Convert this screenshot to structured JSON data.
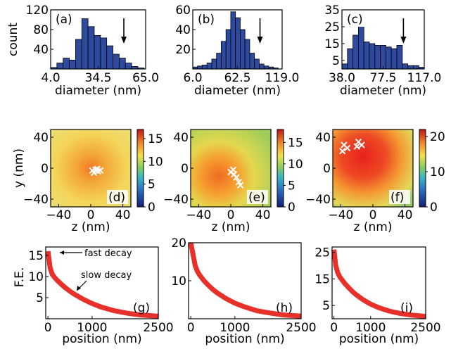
{
  "chart_data": [
    {
      "type": "bar",
      "panel": "(a)",
      "ylabel": "count",
      "xlabel": "diameter (nm)",
      "xlim": [
        4.0,
        65.0
      ],
      "ylim": [
        0,
        120
      ],
      "xticks": [
        "4.0",
        "34.5",
        "65.0"
      ],
      "yticks": [
        "40",
        "80",
        "120"
      ],
      "bin_width": 4.0,
      "bins": [
        4.0,
        8.0,
        12.0,
        16.0,
        20.0,
        24.0,
        28.0,
        32.0,
        36.0,
        40.0,
        44.0,
        48.0,
        52.0,
        56.0,
        60.0
      ],
      "values": [
        3,
        12,
        22,
        18,
        60,
        102,
        86,
        68,
        63,
        47,
        30,
        22,
        12,
        5,
        2
      ],
      "arrow_x": 51,
      "bar_color": "#2e4a9e"
    },
    {
      "type": "bar",
      "panel": "(b)",
      "ylabel": "",
      "xlabel": "diameter (nm)",
      "xlim": [
        6.0,
        119.0
      ],
      "ylim": [
        0,
        60
      ],
      "xticks": [
        "6.0",
        "62.5",
        "119.0"
      ],
      "yticks": [
        "20",
        "40",
        "60"
      ],
      "bin_width": 6.0,
      "bins": [
        6.0,
        12.0,
        18.0,
        24.0,
        30.0,
        36.0,
        42.0,
        48.0,
        54.0,
        60.0,
        66.0,
        72.0,
        78.0,
        84.0,
        90.0,
        96.0,
        102.0,
        108.0
      ],
      "values": [
        2,
        3,
        4,
        6,
        10,
        16,
        28,
        40,
        58,
        52,
        40,
        30,
        16,
        10,
        5,
        3,
        2,
        1
      ],
      "arrow_x": 91,
      "bar_color": "#2e4a9e"
    },
    {
      "type": "bar",
      "panel": "(c)",
      "ylabel": "",
      "xlabel": "diameter (nm)",
      "xlim": [
        38.0,
        117.0
      ],
      "ylim": [
        0,
        35
      ],
      "xticks": [
        "38.0",
        "77.5",
        "117.0"
      ],
      "yticks": [
        "5",
        "15",
        "25",
        "35"
      ],
      "bin_width": 5.27,
      "bins": [
        38.0,
        43.27,
        48.53,
        53.8,
        59.07,
        64.33,
        69.6,
        74.87,
        80.13,
        85.4,
        90.67,
        95.93,
        101.2,
        106.47,
        111.73
      ],
      "values": [
        3,
        12,
        20,
        31,
        16,
        15,
        14,
        14,
        13,
        12,
        14,
        3,
        2,
        2,
        1
      ],
      "arrow_x": 97,
      "bar_color": "#2e4a9e"
    },
    {
      "type": "heatmap",
      "panel": "(d)",
      "xlabel": "z (nm)",
      "ylabel": "y (nm)",
      "xlim": [
        -50,
        50
      ],
      "ylim": [
        -50,
        50
      ],
      "xticks": [
        "−40",
        "0",
        "40"
      ],
      "yticks": [
        "40",
        "0",
        "−40"
      ],
      "colorbar_ticks": [
        "15",
        "10",
        "5",
        "0"
      ],
      "colorbar_range": [
        0,
        17
      ],
      "markers": [
        [
          2,
          -3
        ],
        [
          6,
          -2
        ],
        [
          9,
          -4
        ],
        [
          12,
          -3
        ],
        [
          4,
          -6
        ],
        [
          8,
          -1
        ]
      ]
    },
    {
      "type": "heatmap",
      "panel": "(e)",
      "xlabel": "z (nm)",
      "ylabel": "",
      "xlim": [
        -50,
        50
      ],
      "ylim": [
        -50,
        50
      ],
      "xticks": [
        "−40",
        "0",
        "40"
      ],
      "yticks": [
        "40",
        "0",
        "−40"
      ],
      "colorbar_ticks": [
        "15",
        "10",
        "5",
        "0"
      ],
      "colorbar_range": [
        0,
        18
      ],
      "markers": [
        [
          0,
          -5
        ],
        [
          4,
          -8
        ],
        [
          7,
          -12
        ],
        [
          10,
          -18
        ],
        [
          12,
          -22
        ],
        [
          3,
          -2
        ]
      ]
    },
    {
      "type": "heatmap",
      "panel": "(f)",
      "xlabel": "z (nm)",
      "ylabel": "",
      "xlim": [
        -50,
        50
      ],
      "ylim": [
        -50,
        50
      ],
      "xticks": [
        "−40",
        "0",
        "40"
      ],
      "yticks": [
        "40",
        "0",
        "−40"
      ],
      "colorbar_ticks": [
        "20",
        "10",
        "0"
      ],
      "colorbar_range": [
        0,
        22
      ],
      "markers": [
        [
          -38,
          22
        ],
        [
          -32,
          26
        ],
        [
          -36,
          30
        ],
        [
          -18,
          34
        ],
        [
          -14,
          30
        ],
        [
          -20,
          28
        ]
      ]
    },
    {
      "type": "line",
      "panel": "(g)",
      "xlabel": "position (nm)",
      "ylabel": "F.E.",
      "xlim": [
        -50,
        2500
      ],
      "ylim": [
        0,
        17
      ],
      "xticks": [
        "0",
        "1000",
        "2500"
      ],
      "yticks": [
        "15",
        "10",
        "5"
      ],
      "x": [
        0,
        50,
        100,
        150,
        200,
        300,
        400,
        500,
        600,
        800,
        1000,
        1200,
        1500,
        1800,
        2100,
        2500
      ],
      "y": [
        16,
        12,
        10.5,
        9.8,
        9.2,
        8.2,
        7.3,
        6.5,
        5.8,
        4.6,
        3.6,
        2.8,
        1.9,
        1.3,
        0.9,
        0.6
      ],
      "annotations": [
        "fast decay",
        "slow decay"
      ],
      "line_color": "#e8302a"
    },
    {
      "type": "line",
      "panel": "(h)",
      "xlabel": "position (nm)",
      "ylabel": "",
      "xlim": [
        -50,
        2500
      ],
      "ylim": [
        0,
        20
      ],
      "xticks": [
        "0",
        "1000",
        "2500"
      ],
      "yticks": [
        "20",
        "10"
      ],
      "x": [
        0,
        50,
        100,
        150,
        200,
        300,
        400,
        500,
        600,
        800,
        1000,
        1200,
        1500,
        1800,
        2100,
        2500
      ],
      "y": [
        20,
        17,
        14,
        12.5,
        11.5,
        10,
        8.8,
        7.7,
        6.8,
        5.3,
        4.1,
        3.2,
        2.1,
        1.5,
        1.0,
        0.7
      ],
      "annotations": [],
      "line_color": "#e8302a"
    },
    {
      "type": "line",
      "panel": "(i)",
      "xlabel": "position (nm)",
      "ylabel": "",
      "xlim": [
        -50,
        2500
      ],
      "ylim": [
        0,
        27
      ],
      "xticks": [
        "0",
        "1000",
        "2500"
      ],
      "yticks": [
        "25",
        "15",
        "5"
      ],
      "x": [
        0,
        50,
        100,
        150,
        200,
        300,
        400,
        500,
        600,
        800,
        1000,
        1200,
        1500,
        1800,
        2100,
        2500
      ],
      "y": [
        26,
        20,
        17.5,
        16,
        15,
        13.2,
        11.7,
        10.3,
        9.1,
        7.1,
        5.5,
        4.3,
        2.9,
        2.0,
        1.4,
        0.9
      ],
      "annotations": [],
      "line_color": "#e8302a"
    }
  ]
}
